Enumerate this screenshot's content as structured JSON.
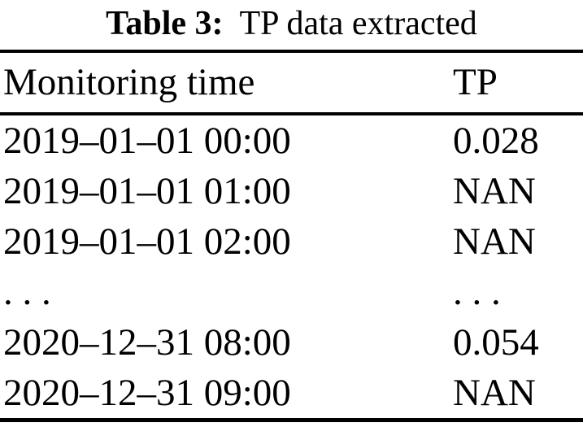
{
  "caption": {
    "label": "Table 3:",
    "text": "TP data extracted"
  },
  "table": {
    "columns": [
      "Monitoring time",
      "TP"
    ],
    "rows": [
      [
        "2019–01–01 00:00",
        "0.028"
      ],
      [
        "2019–01–01 01:00",
        "NAN"
      ],
      [
        "2019–01–01 02:00",
        "NAN"
      ],
      [
        ". . .",
        ". . ."
      ],
      [
        "2020–12–31 08:00",
        "0.054"
      ],
      [
        "2020–12–31 09:00",
        "NAN"
      ]
    ]
  }
}
